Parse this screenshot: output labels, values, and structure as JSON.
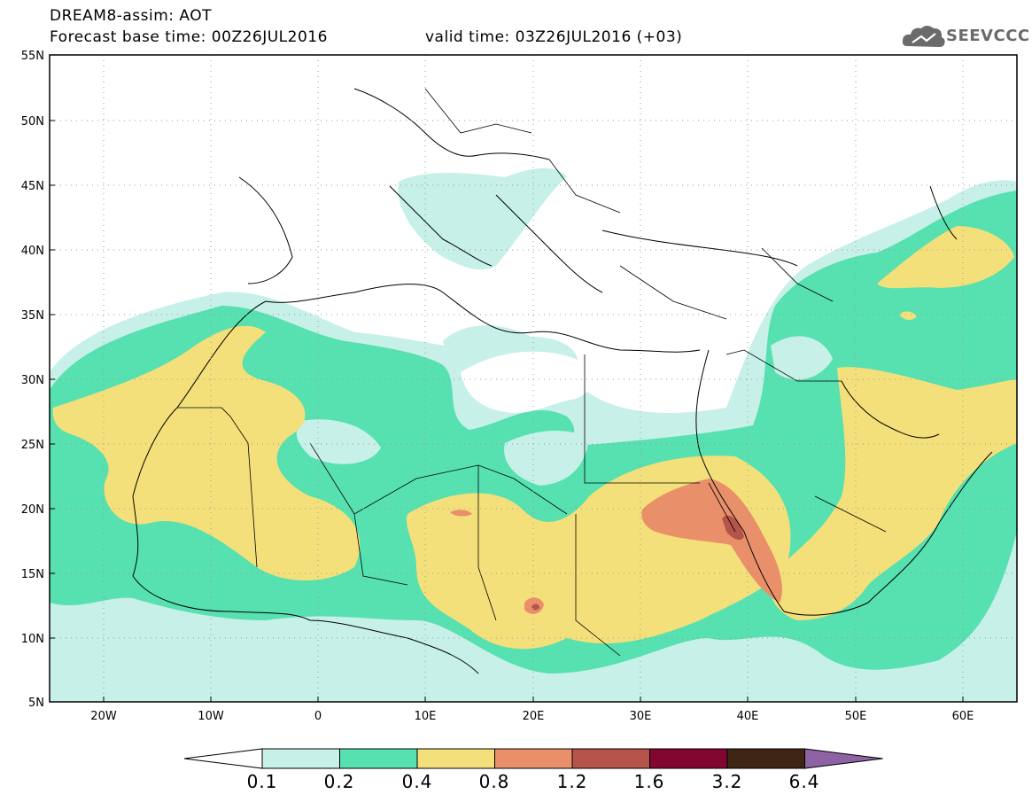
{
  "header": {
    "title": "DREAM8-assim: AOT",
    "base_time": "Forecast base time: 00Z26JUL2016",
    "valid_time": "valid time: 03Z26JUL2016 (+03)",
    "logo_text": "SEEVCCC"
  },
  "map": {
    "lon_range": [
      -25,
      65
    ],
    "lat_range": [
      5,
      55
    ],
    "lat_labels": [
      "55N",
      "50N",
      "45N",
      "40N",
      "35N",
      "30N",
      "25N",
      "20N",
      "15N",
      "10N",
      "5N"
    ],
    "lon_labels": [
      "20W",
      "10W",
      "0",
      "10E",
      "20E",
      "30E",
      "40E",
      "50E",
      "60E"
    ]
  },
  "colorbar": {
    "levels": [
      "0.1",
      "0.2",
      "0.4",
      "0.8",
      "1.2",
      "1.6",
      "3.2",
      "6.4"
    ],
    "colors": [
      "#ffffff",
      "#c6f0e8",
      "#57e0b0",
      "#f4e07a",
      "#e9906a",
      "#b5544a",
      "#82062f",
      "#3f2614",
      "#8e63a6"
    ]
  }
}
